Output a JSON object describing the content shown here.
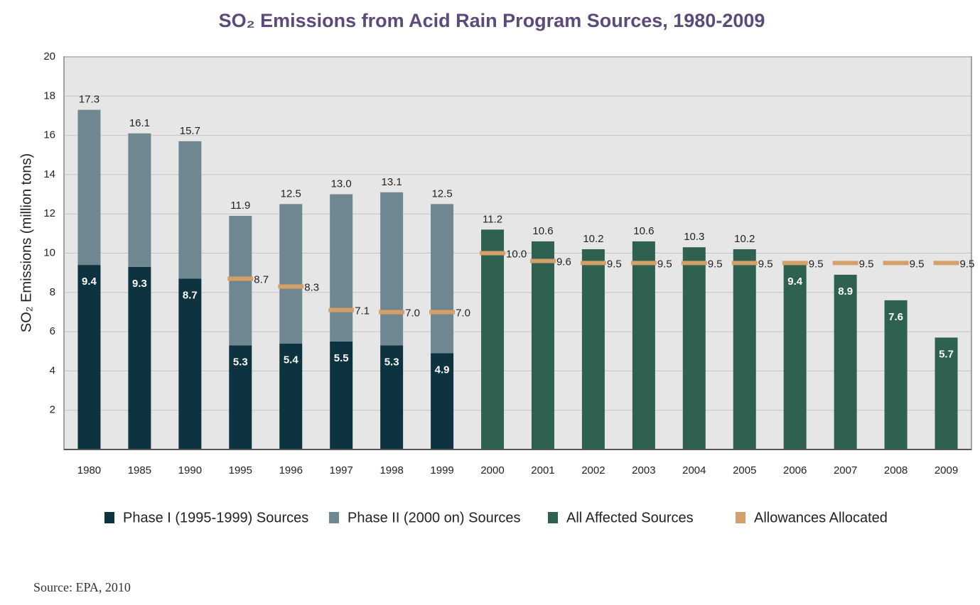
{
  "chart_data": {
    "type": "bar",
    "title": "SO₂ Emissions from Acid Rain Program Sources, 1980-2009",
    "y_label": "SO₂ Emissions (million tons)",
    "source": "Source:  EPA, 2010",
    "categories": [
      "1980",
      "1985",
      "1990",
      "1995",
      "1996",
      "1997",
      "1998",
      "1999",
      "2000",
      "2001",
      "2002",
      "2003",
      "2004",
      "2005",
      "2006",
      "2007",
      "2008",
      "2009"
    ],
    "series": [
      {
        "name": "Phase I (1995-1999) Sources",
        "color": "#0e3340",
        "style": "bar",
        "values": [
          9.4,
          9.3,
          8.7,
          5.3,
          5.4,
          5.5,
          5.3,
          4.9,
          null,
          null,
          null,
          null,
          null,
          null,
          null,
          null,
          null,
          null
        ]
      },
      {
        "name": "Phase II (2000 on) Sources",
        "color": "#6f8790",
        "style": "bar",
        "values": [
          7.9,
          6.8,
          7.0,
          6.6,
          7.1,
          7.5,
          7.8,
          7.6,
          null,
          null,
          null,
          null,
          null,
          null,
          null,
          null,
          null,
          null
        ]
      },
      {
        "name": "All Affected Sources",
        "color": "#2f6150",
        "style": "bar",
        "values": [
          null,
          null,
          null,
          null,
          null,
          null,
          null,
          null,
          11.2,
          10.6,
          10.2,
          10.6,
          10.3,
          10.2,
          9.4,
          8.9,
          7.6,
          5.7
        ]
      },
      {
        "name": "Allowances Allocated",
        "color": "#d4a06a",
        "style": "marker",
        "values": [
          null,
          null,
          null,
          8.7,
          8.3,
          7.1,
          7.0,
          7.0,
          10.0,
          9.6,
          9.5,
          9.5,
          9.5,
          9.5,
          9.5,
          9.5,
          9.5,
          9.5
        ],
        "value_labels": [
          null,
          null,
          null,
          "8.7",
          "8.3",
          "7.1",
          "7.0",
          "7.0",
          "10.0",
          "9.6",
          "9.5",
          "9.5",
          "9.5",
          "9.5",
          "9.5",
          "9.5",
          "9.5",
          "9.5"
        ]
      }
    ],
    "totals": {
      "values": [
        17.3,
        16.1,
        15.7,
        11.9,
        12.5,
        13.0,
        13.1,
        12.5,
        null,
        null,
        null,
        null,
        null,
        null,
        null,
        null,
        null,
        null
      ],
      "value_labels": [
        "17.3",
        "16.1",
        "15.7",
        "11.9",
        "12.5",
        "13.0",
        "13.1",
        "12.5",
        null,
        null,
        null,
        null,
        null,
        null,
        null,
        null,
        null,
        null
      ]
    },
    "ylim": [
      0,
      20
    ],
    "yticks": [
      2,
      4,
      6,
      8,
      10,
      12,
      14,
      16,
      18,
      20
    ],
    "grid": true
  }
}
